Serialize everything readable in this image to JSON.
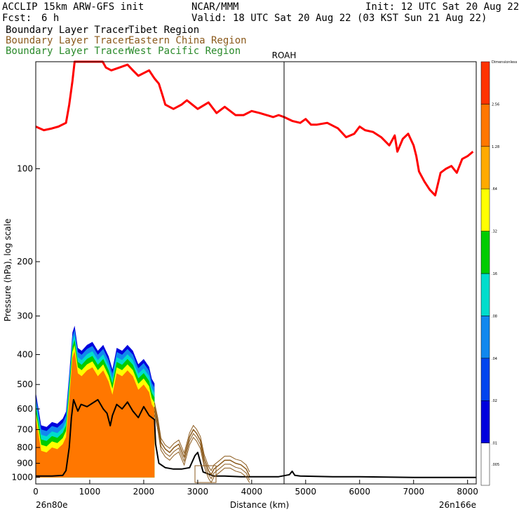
{
  "header": {
    "model": "ACCLIP 15km ARW-GFS init",
    "org": "NCAR/MMM",
    "init": "Init: 12 UTC Sat 20 Aug 22",
    "fcst_label": "Fcst:",
    "fcst_value": "6 h",
    "valid": "Valid: 18 UTC Sat 20 Aug 22 (03 KST Sun 21 Aug 22)",
    "tracers": [
      {
        "prefix": "Boundary Layer Tracer",
        "region": "Tibet Region",
        "color": "#000000"
      },
      {
        "prefix": "Boundary Layer Tracer",
        "region": "Eastern China Region",
        "color": "#8b5a1c"
      },
      {
        "prefix": "Boundary Layer Tracer",
        "region": "West Pacific Region",
        "color": "#2a8a2a"
      }
    ]
  },
  "colorbar": {
    "colors": [
      "#ffffff",
      "#0000dd",
      "#0044ee",
      "#1188ee",
      "#00ddcc",
      "#00cc00",
      "#ffff00",
      "#ffaa00",
      "#ff7700",
      "#ff3300"
    ],
    "labels": [
      ".005",
      ".01",
      ".02",
      ".04",
      ".08",
      ".16",
      ".32",
      ".64",
      "1.28",
      "2.56",
      "Dimensionless"
    ]
  },
  "chart_data": {
    "type": "line",
    "title": "",
    "xlabel": "Distance (km)",
    "ylabel": "Pressure (hPa), log scale",
    "x_ticks": [
      0,
      1000,
      2000,
      3000,
      4000,
      5000,
      6000,
      7000,
      8000
    ],
    "y_ticks": [
      100,
      200,
      300,
      400,
      500,
      600,
      700,
      800,
      900,
      1000
    ],
    "xlim": [
      0,
      8160
    ],
    "ylim": [
      45,
      1050
    ],
    "yscale": "log",
    "x_left_label": "26n80e",
    "x_right_label": "26n166e",
    "marker": {
      "label": "ROAH",
      "x": 4600
    },
    "series": [
      {
        "name": "tropopause",
        "color": "#ff0000",
        "x": [
          0,
          150,
          300,
          420,
          560,
          620,
          680,
          720,
          1220,
          1240,
          1300,
          1400,
          1550,
          1700,
          1800,
          1900,
          2100,
          2200,
          2280,
          2350,
          2400,
          2550,
          2700,
          2800,
          2900,
          3000,
          3200,
          3350,
          3500,
          3700,
          3850,
          4000,
          4150,
          4400,
          4500,
          4600,
          4750,
          4900,
          5000,
          5100,
          5200,
          5400,
          5600,
          5750,
          5900,
          6000,
          6100,
          6250,
          6400,
          6550,
          6650,
          6700,
          6800,
          6900,
          7000,
          7050,
          7100,
          7200,
          7300,
          7400,
          7500,
          7600,
          7700,
          7800,
          7900,
          8000,
          8100
        ],
        "y": [
          73,
          75,
          74,
          73,
          71,
          62,
          52,
          43,
          43,
          44,
          47,
          48,
          47,
          46,
          48,
          50,
          48,
          51,
          53,
          58,
          62,
          64,
          62,
          60,
          62,
          64,
          61,
          66,
          63,
          67,
          67,
          65,
          66,
          68,
          67,
          68,
          70,
          71,
          69,
          72,
          72,
          71,
          74,
          79,
          77,
          73,
          75,
          76,
          79,
          84,
          78,
          88,
          80,
          77,
          84,
          91,
          102,
          110,
          117,
          122,
          103,
          100,
          98,
          103,
          93,
          91,
          88
        ]
      },
      {
        "name": "tracer-black",
        "color": "#000000",
        "x": [
          0,
          300,
          500,
          560,
          620,
          660,
          700,
          780,
          840,
          950,
          1050,
          1150,
          1250,
          1320,
          1380,
          1420,
          1500,
          1600,
          1700,
          1800,
          1900,
          2000,
          2100,
          2200,
          2220,
          2280,
          2400,
          2550,
          2700,
          2850,
          2950,
          3000,
          3100,
          3300,
          3500,
          3800,
          4000,
          4500,
          4700,
          4750,
          4800,
          4900,
          5500,
          6000,
          6500,
          7000,
          7500,
          8000,
          8160
        ],
        "y": [
          990,
          990,
          985,
          950,
          800,
          640,
          560,
          610,
          580,
          590,
          575,
          560,
          600,
          620,
          680,
          630,
          580,
          600,
          570,
          610,
          640,
          590,
          630,
          650,
          780,
          900,
          930,
          940,
          940,
          930,
          850,
          830,
          960,
          990,
          990,
          995,
          995,
          995,
          980,
          955,
          985,
          990,
          995,
          995,
          998,
          1000,
          1000,
          1000,
          1000
        ]
      },
      {
        "name": "tracer-brown",
        "color": "#8b5a1c",
        "x": [
          2200,
          2260,
          2320,
          2400,
          2480,
          2560,
          2650,
          2750,
          2850,
          2920,
          2980,
          3050,
          3120,
          3200,
          3250,
          3300,
          3400,
          3500,
          3600,
          3700,
          3800,
          3900,
          3960
        ],
        "y": [
          590,
          660,
          770,
          810,
          830,
          800,
          780,
          860,
          740,
          700,
          720,
          760,
          870,
          950,
          980,
          940,
          910,
          880,
          880,
          900,
          910,
          940,
          990
        ]
      }
    ],
    "filled_regions": [
      {
        "name": "tracer-shading",
        "x": [
          0,
          100,
          200,
          300,
          400,
          500,
          560,
          620,
          680,
          720,
          780,
          850,
          950,
          1050,
          1150,
          1250,
          1350,
          1420,
          1500,
          1600,
          1700,
          1800,
          1900,
          2000,
          2100,
          2150,
          2200
        ],
        "top": [
          640,
          820,
          830,
          800,
          810,
          780,
          740,
          560,
          410,
          390,
          460,
          470,
          450,
          440,
          470,
          450,
          490,
          540,
          460,
          470,
          450,
          470,
          520,
          500,
          530,
          580,
          600
        ]
      }
    ]
  }
}
